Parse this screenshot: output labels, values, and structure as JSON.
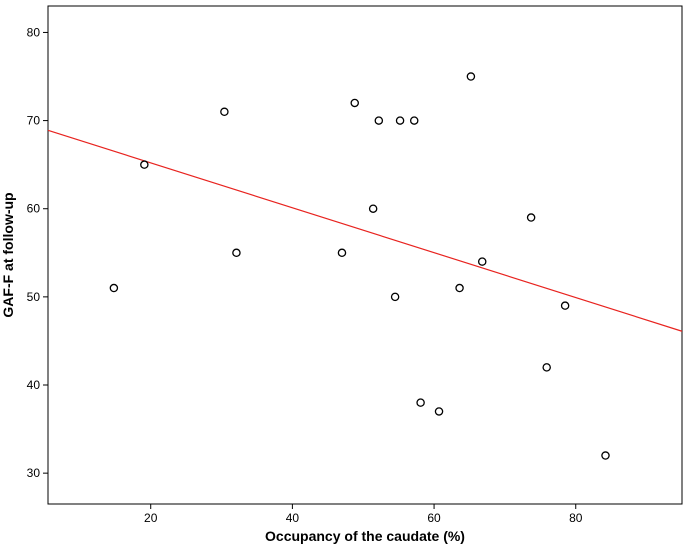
{
  "chart_data": {
    "type": "scatter",
    "title": "",
    "xlabel": "Occupancy of the caudate (%)",
    "ylabel": "GAF-F at follow-up",
    "xlim": [
      5.5,
      95
    ],
    "ylim": [
      26.5,
      83
    ],
    "xticks": [
      20,
      40,
      60,
      80
    ],
    "yticks": [
      30,
      40,
      50,
      60,
      70,
      80
    ],
    "grid": false,
    "points": [
      {
        "x": 14.8,
        "y": 51
      },
      {
        "x": 19.1,
        "y": 65
      },
      {
        "x": 30.4,
        "y": 71
      },
      {
        "x": 32.1,
        "y": 55
      },
      {
        "x": 47.0,
        "y": 55
      },
      {
        "x": 48.8,
        "y": 72
      },
      {
        "x": 51.4,
        "y": 60
      },
      {
        "x": 52.2,
        "y": 70
      },
      {
        "x": 54.5,
        "y": 50
      },
      {
        "x": 55.2,
        "y": 70
      },
      {
        "x": 57.2,
        "y": 70
      },
      {
        "x": 58.1,
        "y": 38
      },
      {
        "x": 60.7,
        "y": 37
      },
      {
        "x": 63.6,
        "y": 51
      },
      {
        "x": 65.2,
        "y": 75
      },
      {
        "x": 66.8,
        "y": 54
      },
      {
        "x": 73.7,
        "y": 59
      },
      {
        "x": 75.9,
        "y": 42
      },
      {
        "x": 78.5,
        "y": 49
      },
      {
        "x": 84.2,
        "y": 32
      }
    ],
    "fit_line": {
      "x": [
        5.5,
        95
      ],
      "y": [
        68.9,
        46.1
      ],
      "color": "#e8231f"
    },
    "point_color": "#000000"
  }
}
